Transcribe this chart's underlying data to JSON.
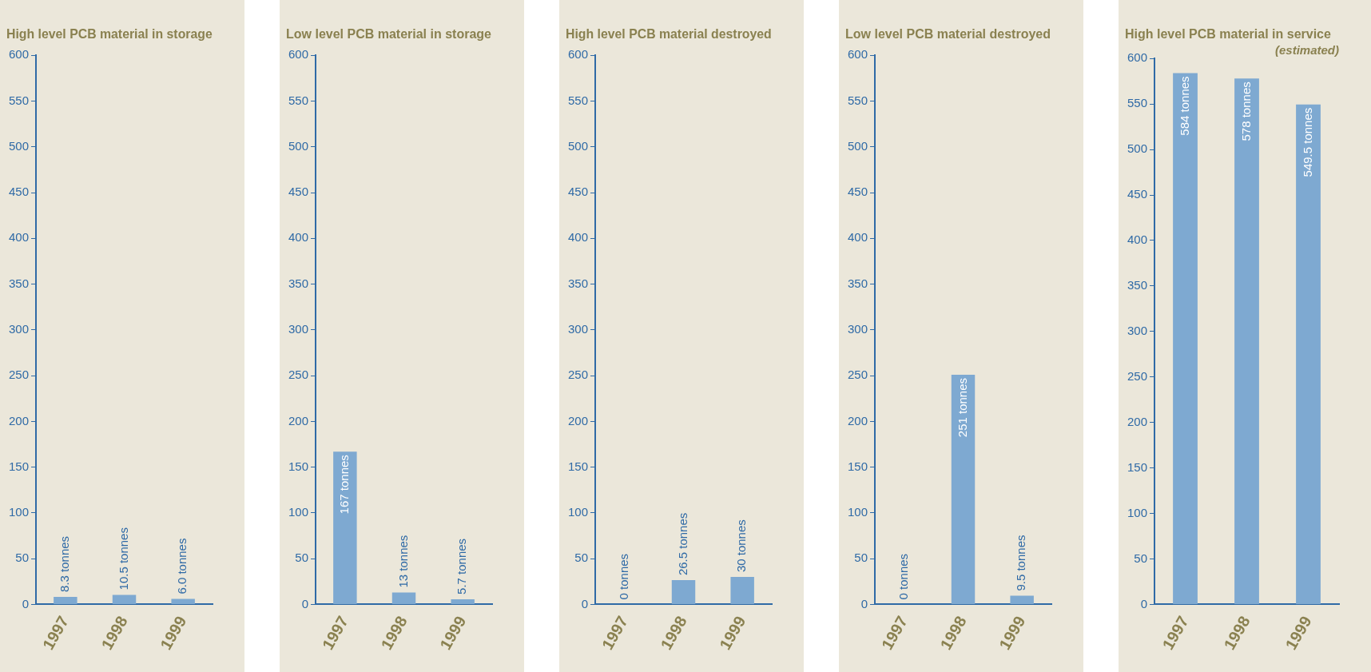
{
  "chart_data": [
    {
      "type": "bar",
      "title": "High level PCB material in storage",
      "categories": [
        "1997",
        "1998",
        "1999"
      ],
      "values": [
        8.3,
        10.5,
        6.0
      ],
      "value_labels": [
        "8.3 tonnes",
        "10.5 tonnes",
        "6.0 tonnes"
      ],
      "color": "#7ea9d1",
      "ylim": [
        0,
        600
      ],
      "yticks": [
        0,
        50,
        100,
        150,
        200,
        250,
        300,
        350,
        400,
        450,
        500,
        550,
        600
      ],
      "grid": false
    },
    {
      "type": "bar",
      "title": "Low level PCB material in storage",
      "categories": [
        "1997",
        "1998",
        "1999"
      ],
      "values": [
        167,
        13,
        5.7
      ],
      "value_labels": [
        "167 tonnes",
        "13 tonnes",
        "5.7 tonnes"
      ],
      "color": "#7ea9d1",
      "ylim": [
        0,
        600
      ],
      "yticks": [
        0,
        50,
        100,
        150,
        200,
        250,
        300,
        350,
        400,
        450,
        500,
        550,
        600
      ],
      "grid": false
    },
    {
      "type": "bar",
      "title": "High level PCB material destroyed",
      "categories": [
        "1997",
        "1998",
        "1999"
      ],
      "values": [
        0,
        26.5,
        30
      ],
      "value_labels": [
        "0 tonnes",
        "26.5 tonnes",
        "30 tonnes"
      ],
      "color": "#7ea9d1",
      "ylim": [
        0,
        600
      ],
      "yticks": [
        0,
        50,
        100,
        150,
        200,
        250,
        300,
        350,
        400,
        450,
        500,
        550,
        600
      ],
      "grid": false
    },
    {
      "type": "bar",
      "title": "Low level PCB material destroyed",
      "categories": [
        "1997",
        "1998",
        "1999"
      ],
      "values": [
        0,
        251,
        9.5
      ],
      "value_labels": [
        "0 tonnes",
        "251 tonnes",
        "9.5 tonnes"
      ],
      "color": "#7ea9d1",
      "ylim": [
        0,
        600
      ],
      "yticks": [
        0,
        50,
        100,
        150,
        200,
        250,
        300,
        350,
        400,
        450,
        500,
        550,
        600
      ],
      "grid": false
    },
    {
      "type": "bar",
      "title": "High level PCB material in service",
      "subtitle": "(estimated)",
      "categories": [
        "1997",
        "1998",
        "1999"
      ],
      "values": [
        584,
        578,
        549.5
      ],
      "value_labels": [
        "584 tonnes",
        "578 tonnes",
        "549.5 tonnes"
      ],
      "color": "#7ea9d1",
      "ylim": [
        0,
        600
      ],
      "yticks": [
        0,
        50,
        100,
        150,
        200,
        250,
        300,
        350,
        400,
        450,
        500,
        550,
        600
      ],
      "grid": false
    }
  ]
}
